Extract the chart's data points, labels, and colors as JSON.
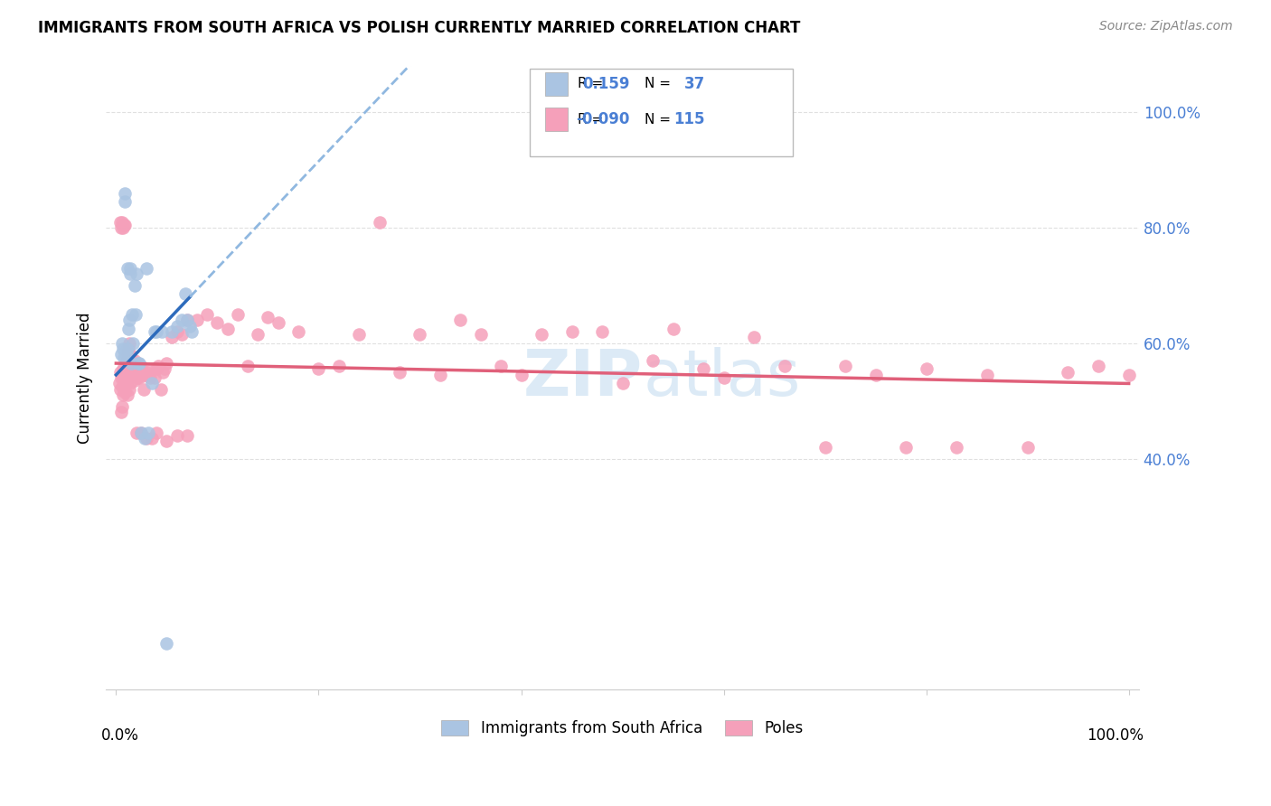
{
  "title": "IMMIGRANTS FROM SOUTH AFRICA VS POLISH CURRENTLY MARRIED CORRELATION CHART",
  "source": "Source: ZipAtlas.com",
  "ylabel": "Currently Married",
  "legend_labels": [
    "Immigrants from South Africa",
    "Poles"
  ],
  "r_blue": "0.159",
  "n_blue": "37",
  "r_pink": "-0.090",
  "n_pink": "115",
  "blue_color": "#aac4e2",
  "blue_line_color": "#2d6bbc",
  "pink_color": "#f5a0ba",
  "pink_line_color": "#e0607a",
  "dashed_line_color": "#90b8e0",
  "watermark_color": "#c5ddf0",
  "grid_color": "#e0e0e0",
  "ytick_color": "#4a7fd4",
  "blue_x": [
    0.005,
    0.006,
    0.007,
    0.008,
    0.009,
    0.009,
    0.01,
    0.011,
    0.011,
    0.012,
    0.013,
    0.014,
    0.014,
    0.015,
    0.016,
    0.017,
    0.018,
    0.019,
    0.02,
    0.022,
    0.023,
    0.025,
    0.028,
    0.03,
    0.032,
    0.035,
    0.038,
    0.04,
    0.045,
    0.05,
    0.055,
    0.06,
    0.065,
    0.068,
    0.07,
    0.073,
    0.075
  ],
  "blue_y": [
    0.58,
    0.6,
    0.59,
    0.575,
    0.86,
    0.845,
    0.58,
    0.59,
    0.73,
    0.625,
    0.64,
    0.72,
    0.73,
    0.565,
    0.65,
    0.6,
    0.7,
    0.65,
    0.72,
    0.565,
    0.565,
    0.445,
    0.435,
    0.73,
    0.445,
    0.53,
    0.62,
    0.62,
    0.62,
    0.08,
    0.62,
    0.63,
    0.64,
    0.685,
    0.64,
    0.63,
    0.62
  ],
  "pink_x": [
    0.003,
    0.004,
    0.004,
    0.005,
    0.005,
    0.006,
    0.006,
    0.007,
    0.007,
    0.008,
    0.008,
    0.009,
    0.009,
    0.01,
    0.01,
    0.011,
    0.011,
    0.012,
    0.012,
    0.013,
    0.013,
    0.014,
    0.015,
    0.015,
    0.016,
    0.017,
    0.018,
    0.018,
    0.019,
    0.02,
    0.021,
    0.022,
    0.023,
    0.024,
    0.025,
    0.026,
    0.027,
    0.028,
    0.03,
    0.032,
    0.034,
    0.036,
    0.038,
    0.04,
    0.042,
    0.044,
    0.046,
    0.048,
    0.05,
    0.055,
    0.06,
    0.065,
    0.07,
    0.08,
    0.09,
    0.1,
    0.11,
    0.12,
    0.13,
    0.14,
    0.15,
    0.16,
    0.18,
    0.2,
    0.22,
    0.24,
    0.26,
    0.28,
    0.3,
    0.32,
    0.34,
    0.36,
    0.38,
    0.4,
    0.42,
    0.45,
    0.48,
    0.5,
    0.53,
    0.55,
    0.58,
    0.6,
    0.63,
    0.66,
    0.7,
    0.72,
    0.75,
    0.78,
    0.8,
    0.83,
    0.86,
    0.9,
    0.94,
    0.97,
    1.0,
    0.004,
    0.005,
    0.006,
    0.007,
    0.008,
    0.009,
    0.01,
    0.011,
    0.012,
    0.013,
    0.014,
    0.015,
    0.02,
    0.025,
    0.03,
    0.035,
    0.04,
    0.05,
    0.06,
    0.07
  ],
  "pink_y": [
    0.53,
    0.55,
    0.52,
    0.54,
    0.48,
    0.525,
    0.49,
    0.555,
    0.51,
    0.535,
    0.555,
    0.545,
    0.515,
    0.53,
    0.56,
    0.55,
    0.51,
    0.545,
    0.555,
    0.56,
    0.52,
    0.53,
    0.545,
    0.555,
    0.55,
    0.56,
    0.57,
    0.535,
    0.55,
    0.56,
    0.54,
    0.55,
    0.54,
    0.555,
    0.56,
    0.55,
    0.52,
    0.545,
    0.55,
    0.545,
    0.54,
    0.555,
    0.54,
    0.555,
    0.56,
    0.52,
    0.55,
    0.555,
    0.565,
    0.61,
    0.62,
    0.615,
    0.64,
    0.64,
    0.65,
    0.635,
    0.625,
    0.65,
    0.56,
    0.615,
    0.645,
    0.635,
    0.62,
    0.555,
    0.56,
    0.615,
    0.81,
    0.55,
    0.615,
    0.545,
    0.64,
    0.615,
    0.56,
    0.545,
    0.615,
    0.62,
    0.62,
    0.53,
    0.57,
    0.625,
    0.555,
    0.54,
    0.61,
    0.56,
    0.42,
    0.56,
    0.545,
    0.42,
    0.555,
    0.42,
    0.545,
    0.42,
    0.55,
    0.56,
    0.545,
    0.81,
    0.8,
    0.81,
    0.8,
    0.805,
    0.805,
    0.57,
    0.58,
    0.59,
    0.6,
    0.58,
    0.57,
    0.445,
    0.445,
    0.435,
    0.435,
    0.445,
    0.43,
    0.44,
    0.44
  ],
  "blue_line_x0": 0.0,
  "blue_line_x1": 0.073,
  "blue_line_y0": 0.545,
  "blue_line_y1": 0.68,
  "dash_line_x0": 0.073,
  "dash_line_x1": 1.0,
  "pink_line_x0": 0.0,
  "pink_line_x1": 1.0,
  "pink_line_y0": 0.565,
  "pink_line_y1": 0.53,
  "xlim": [
    -0.01,
    1.01
  ],
  "ylim": [
    0.0,
    1.08
  ]
}
